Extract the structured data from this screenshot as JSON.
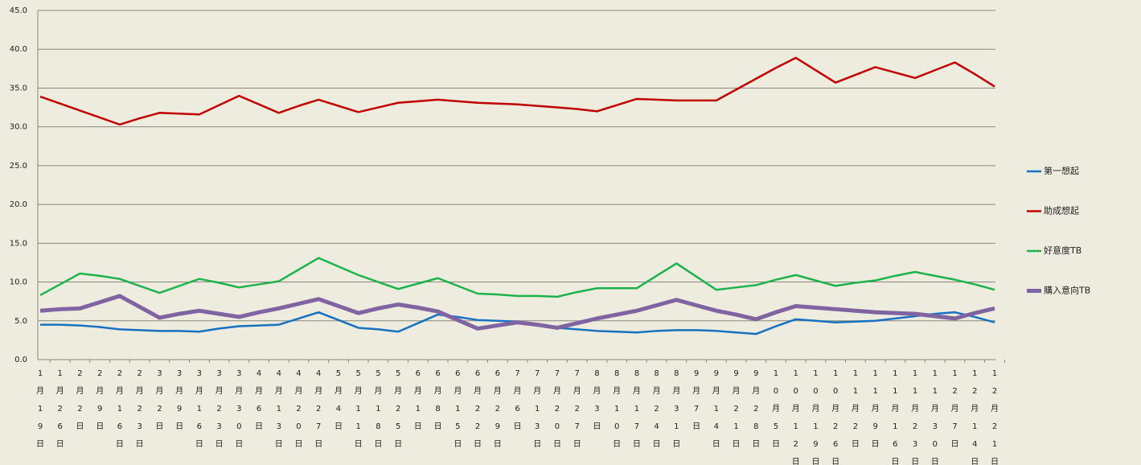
{
  "chart_data": {
    "type": "line",
    "categories": [
      "1月19日",
      "1月26日",
      "2月2日",
      "2月9日",
      "2月16日",
      "2月23日",
      "3月2日",
      "3月9日",
      "3月16日",
      "3月23日",
      "3月30日",
      "4月6日",
      "4月13日",
      "4月20日",
      "4月27日",
      "5月4日",
      "5月11日",
      "5月18日",
      "5月25日",
      "6月1日",
      "6月8日",
      "6月15日",
      "6月22日",
      "6月29日",
      "7月6日",
      "7月13日",
      "7月20日",
      "7月27日",
      "8月3日",
      "8月10日",
      "8月17日",
      "8月24日",
      "8月31日",
      "9月7日",
      "9月14日",
      "9月21日",
      "9月28日",
      "10月5日",
      "10月12日",
      "10月19日",
      "10月26日",
      "11月2日",
      "11月9日",
      "11月16日",
      "11月23日",
      "11月30日",
      "12月7日",
      "12月14日",
      "12月21日"
    ],
    "series": [
      {
        "name": "第一想起",
        "color": "#1672c0",
        "values": [
          4.5,
          4.5,
          4.4,
          4.2,
          3.9,
          3.8,
          3.7,
          3.7,
          3.6,
          4.0,
          4.3,
          4.4,
          4.5,
          5.3,
          6.1,
          5.1,
          4.1,
          3.9,
          3.6,
          4.7,
          5.8,
          5.5,
          5.1,
          5.0,
          4.9,
          4.5,
          4.1,
          3.9,
          3.7,
          3.6,
          3.5,
          3.7,
          3.8,
          3.8,
          3.7,
          3.5,
          3.3,
          4.3,
          5.2,
          5.0,
          4.8,
          4.9,
          5.0,
          5.3,
          5.6,
          5.9,
          6.1,
          5.5,
          4.8
        ]
      },
      {
        "name": "助成想起",
        "color": "#c00000",
        "values": [
          33.9,
          33.0,
          32.1,
          31.2,
          30.3,
          31.1,
          31.8,
          31.7,
          31.6,
          32.8,
          34.0,
          32.9,
          31.8,
          32.7,
          33.5,
          32.7,
          31.9,
          32.5,
          33.1,
          33.3,
          33.5,
          33.3,
          33.1,
          33.0,
          32.9,
          32.7,
          32.5,
          32.3,
          32.0,
          32.8,
          33.6,
          33.5,
          33.4,
          33.4,
          33.4,
          34.8,
          36.2,
          37.6,
          38.9,
          37.3,
          35.7,
          36.7,
          37.7,
          37.0,
          36.3,
          37.3,
          38.3,
          36.8,
          35.2
        ]
      },
      {
        "name": "好意度TB",
        "color": "#1db34c",
        "values": [
          8.3,
          9.7,
          11.1,
          10.8,
          10.4,
          9.5,
          8.6,
          9.5,
          10.4,
          9.9,
          9.3,
          9.7,
          10.1,
          11.6,
          13.1,
          12.0,
          10.9,
          10.0,
          9.1,
          9.8,
          10.5,
          9.5,
          8.5,
          8.4,
          8.2,
          8.2,
          8.1,
          8.7,
          9.2,
          9.2,
          9.2,
          10.8,
          12.4,
          10.7,
          9.0,
          9.3,
          9.6,
          10.3,
          10.9,
          10.2,
          9.5,
          9.9,
          10.2,
          10.8,
          11.3,
          10.8,
          10.3,
          9.7,
          9.0
        ]
      },
      {
        "name": "購入意向TB",
        "color": "#8064a2",
        "values": [
          6.3,
          6.5,
          6.6,
          7.4,
          8.2,
          6.8,
          5.4,
          5.9,
          6.3,
          5.9,
          5.5,
          6.1,
          6.6,
          7.2,
          7.8,
          6.9,
          6.0,
          6.6,
          7.1,
          6.7,
          6.2,
          5.1,
          4.0,
          4.4,
          4.8,
          4.5,
          4.1,
          4.7,
          5.3,
          5.8,
          6.3,
          7.0,
          7.7,
          7.0,
          6.3,
          5.8,
          5.2,
          6.1,
          6.9,
          6.7,
          6.5,
          6.3,
          6.1,
          6.0,
          5.9,
          5.6,
          5.3,
          6.0,
          6.6
        ]
      }
    ],
    "ylim": [
      0,
      45
    ],
    "yticks": [
      {
        "value": 0,
        "label": "0.0"
      },
      {
        "value": 5,
        "label": "5.0"
      },
      {
        "value": 10,
        "label": "10.0"
      },
      {
        "value": 15,
        "label": "15.0"
      },
      {
        "value": 20,
        "label": "20.0"
      },
      {
        "value": 25,
        "label": "25.0"
      },
      {
        "value": 30,
        "label": "30.0"
      },
      {
        "value": 35,
        "label": "35.0"
      },
      {
        "value": 40,
        "label": "40.0"
      },
      {
        "value": 45,
        "label": "45.0"
      }
    ],
    "grid": true,
    "legend": "right"
  }
}
